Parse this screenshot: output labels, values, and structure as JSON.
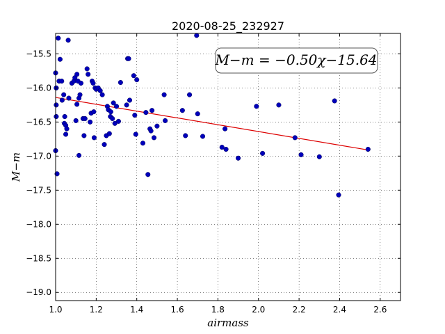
{
  "chart_data": {
    "type": "scatter",
    "title": "2020-08-25_232927",
    "xlabel": "airmass",
    "ylabel": "M−m",
    "xlim": [
      1.0,
      2.7
    ],
    "ylim": [
      -19.12,
      -15.2
    ],
    "xticks": [
      "1.0",
      "1.2",
      "1.4",
      "1.6",
      "1.8",
      "2.0",
      "2.2",
      "2.4",
      "2.6"
    ],
    "yticks": [
      "−15.5",
      "−16.0",
      "−16.5",
      "−17.0",
      "−17.5",
      "−18.0",
      "−18.5",
      "−19.0"
    ],
    "xtick_values": [
      1.0,
      1.2,
      1.4,
      1.6,
      1.8,
      2.0,
      2.2,
      2.4,
      2.6
    ],
    "ytick_values": [
      -15.5,
      -16.0,
      -16.5,
      -17.0,
      -17.5,
      -18.0,
      -18.5,
      -19.0
    ],
    "grid": true,
    "annotation": "M−m = −0.50χ−15.64",
    "fit": {
      "slope": -0.5,
      "intercept": -15.64,
      "x_range": [
        1.0,
        2.54
      ],
      "color": "#dd0000"
    },
    "marker_color": "#0000bb",
    "points": [
      [
        1.0,
        -15.78
      ],
      [
        1.003,
        -16.0
      ],
      [
        1.003,
        -16.25
      ],
      [
        1.003,
        -16.42
      ],
      [
        1.0,
        -16.92
      ],
      [
        1.007,
        -17.26
      ],
      [
        1.013,
        -15.27
      ],
      [
        1.017,
        -15.9
      ],
      [
        1.022,
        -15.58
      ],
      [
        1.03,
        -15.9
      ],
      [
        1.032,
        -16.18
      ],
      [
        1.04,
        -16.1
      ],
      [
        1.045,
        -16.42
      ],
      [
        1.043,
        -16.52
      ],
      [
        1.05,
        -16.55
      ],
      [
        1.05,
        -16.68
      ],
      [
        1.055,
        -16.6
      ],
      [
        1.062,
        -15.3
      ],
      [
        1.065,
        -16.15
      ],
      [
        1.08,
        -15.93
      ],
      [
        1.09,
        -15.9
      ],
      [
        1.095,
        -15.85
      ],
      [
        1.1,
        -16.48
      ],
      [
        1.105,
        -15.8
      ],
      [
        1.105,
        -16.24
      ],
      [
        1.11,
        -15.9
      ],
      [
        1.115,
        -16.15
      ],
      [
        1.115,
        -16.99
      ],
      [
        1.12,
        -16.1
      ],
      [
        1.125,
        -15.93
      ],
      [
        1.135,
        -16.45
      ],
      [
        1.14,
        -16.7
      ],
      [
        1.145,
        -16.45
      ],
      [
        1.155,
        -15.72
      ],
      [
        1.16,
        -15.8
      ],
      [
        1.17,
        -16.5
      ],
      [
        1.175,
        -16.37
      ],
      [
        1.18,
        -15.9
      ],
      [
        1.185,
        -15.93
      ],
      [
        1.188,
        -16.35
      ],
      [
        1.19,
        -16.73
      ],
      [
        1.195,
        -16.0
      ],
      [
        1.2,
        -16.02
      ],
      [
        1.21,
        -16.0
      ],
      [
        1.22,
        -16.04
      ],
      [
        1.23,
        -16.1
      ],
      [
        1.24,
        -16.83
      ],
      [
        1.25,
        -16.7
      ],
      [
        1.255,
        -16.27
      ],
      [
        1.26,
        -16.32
      ],
      [
        1.265,
        -16.67
      ],
      [
        1.27,
        -16.42
      ],
      [
        1.272,
        -16.35
      ],
      [
        1.28,
        -16.45
      ],
      [
        1.285,
        -16.22
      ],
      [
        1.292,
        -16.52
      ],
      [
        1.3,
        -16.27
      ],
      [
        1.31,
        -16.49
      ],
      [
        1.32,
        -15.92
      ],
      [
        1.35,
        -16.25
      ],
      [
        1.355,
        -15.57
      ],
      [
        1.36,
        -15.57
      ],
      [
        1.365,
        -16.18
      ],
      [
        1.385,
        -15.82
      ],
      [
        1.39,
        -16.4
      ],
      [
        1.395,
        -16.68
      ],
      [
        1.4,
        -15.88
      ],
      [
        1.43,
        -16.81
      ],
      [
        1.445,
        -16.36
      ],
      [
        1.455,
        -17.27
      ],
      [
        1.465,
        -16.6
      ],
      [
        1.47,
        -16.63
      ],
      [
        1.475,
        -16.33
      ],
      [
        1.485,
        -16.73
      ],
      [
        1.5,
        -16.56
      ],
      [
        1.535,
        -16.1
      ],
      [
        1.54,
        -16.48
      ],
      [
        1.625,
        -16.33
      ],
      [
        1.64,
        -16.7
      ],
      [
        1.66,
        -16.1
      ],
      [
        1.695,
        -15.23
      ],
      [
        1.7,
        -16.38
      ],
      [
        1.725,
        -16.71
      ],
      [
        1.82,
        -16.87
      ],
      [
        1.835,
        -16.6
      ],
      [
        1.84,
        -16.9
      ],
      [
        1.9,
        -17.03
      ],
      [
        1.99,
        -16.27
      ],
      [
        2.02,
        -16.96
      ],
      [
        2.1,
        -16.25
      ],
      [
        2.18,
        -16.73
      ],
      [
        2.21,
        -16.98
      ],
      [
        2.3,
        -17.01
      ],
      [
        2.375,
        -16.19
      ],
      [
        2.395,
        -17.57
      ],
      [
        2.54,
        -16.9
      ]
    ]
  }
}
